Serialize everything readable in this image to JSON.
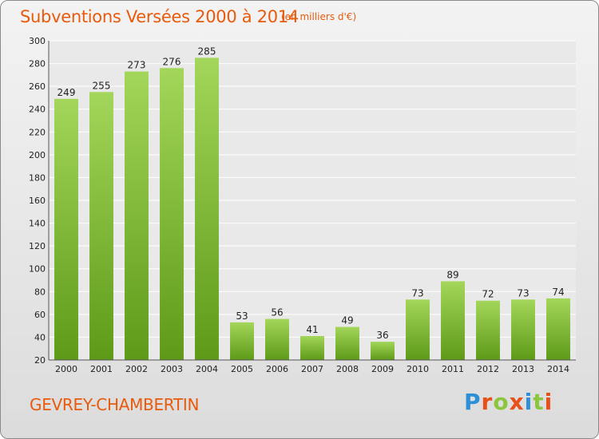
{
  "header": {
    "title": "Subventions Versées 2000 à 2014",
    "subtitle": "(en milliers d'€)"
  },
  "footer": {
    "commune": "GEVREY-CHAMBERTIN",
    "logo_text": "Proxiti"
  },
  "colors": {
    "title": "#e85a0c",
    "bar_light": "#a3d65a",
    "bar_dark": "#5e9a18",
    "grid": "#ffffff",
    "background": "#e8e8e8"
  },
  "chart_data": {
    "type": "bar",
    "title": "Subventions Versées 2000 à 2014",
    "subtitle": "(en milliers d'€)",
    "categories": [
      "2000",
      "2001",
      "2002",
      "2003",
      "2004",
      "2005",
      "2006",
      "2007",
      "2008",
      "2009",
      "2010",
      "2011",
      "2012",
      "2013",
      "2014"
    ],
    "values": [
      249,
      255,
      273,
      276,
      285,
      53,
      56,
      41,
      49,
      36,
      73,
      89,
      72,
      73,
      74
    ],
    "xlabel": "",
    "ylabel": "",
    "ylim": [
      20,
      300
    ],
    "yticks": [
      20,
      40,
      60,
      80,
      100,
      120,
      140,
      160,
      180,
      200,
      220,
      240,
      260,
      280,
      300
    ],
    "grid": true,
    "legend": "none"
  }
}
